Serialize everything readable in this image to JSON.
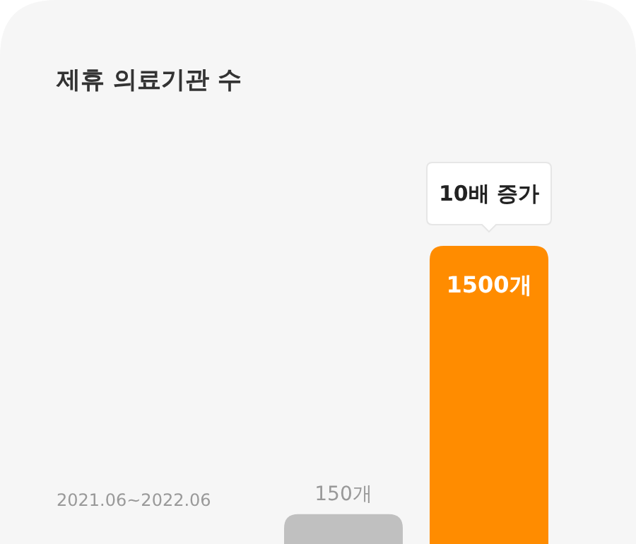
{
  "chart_data": {
    "type": "bar",
    "title": "제휴 의료기관 수",
    "categories": [
      null,
      null
    ],
    "values": [
      150,
      1500
    ],
    "colors": [
      "#c0c0c0",
      "#ff8c00"
    ],
    "value_labels": [
      "150개",
      "1500개"
    ],
    "annotations": [
      "10배 증가",
      "2021.06~2022.06"
    ]
  }
}
